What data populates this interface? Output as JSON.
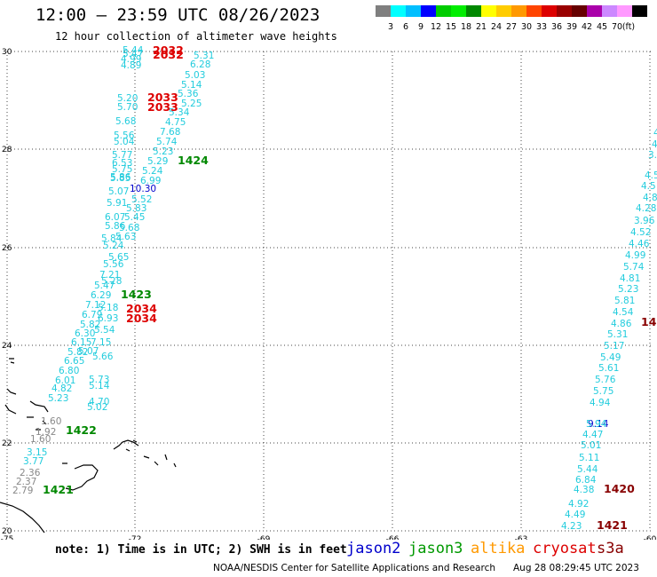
{
  "header": {
    "title": "12:00 — 23:59 UTC 08/26/2023",
    "subtitle": "12 hour collection of altimeter wave heights"
  },
  "legend": {
    "colors": [
      "#7f7f7f",
      "#00ffff",
      "#00bfff",
      "#0000ff",
      "#00cc00",
      "#00ee00",
      "#008800",
      "#ffff00",
      "#ffcc00",
      "#ff9900",
      "#ff4400",
      "#dd0000",
      "#990000",
      "#660000",
      "#aa00aa",
      "#cc88ff",
      "#ff99ff",
      "#000000"
    ],
    "labels": [
      "3",
      "6",
      "9",
      "12",
      "15",
      "18",
      "21",
      "24",
      "27",
      "30",
      "33",
      "36",
      "39",
      "42",
      "45",
      "70",
      "(ft)"
    ]
  },
  "axes": {
    "lat_labels": [
      "30",
      "28",
      "26",
      "24",
      "22",
      "20"
    ],
    "lon_labels": [
      "-75",
      "-72",
      "-69",
      "-66",
      "-63",
      "-60"
    ]
  },
  "points": [
    {
      "t": "5.44",
      "c": "#22ccdd"
    },
    {
      "t": "5.47",
      "c": "#22ccdd"
    },
    {
      "t": "5.31",
      "c": "#22ccdd"
    },
    {
      "t": "4.99",
      "c": "#22ccdd"
    },
    {
      "t": "4.89",
      "c": "#22ccdd"
    },
    {
      "t": "6.28",
      "c": "#22ccdd"
    },
    {
      "t": "5.03",
      "c": "#22ccdd"
    },
    {
      "t": "5.14",
      "c": "#22ccdd"
    },
    {
      "t": "5.36",
      "c": "#22ccdd"
    },
    {
      "t": "5.20",
      "c": "#22ccdd"
    },
    {
      "t": "5.25",
      "c": "#22ccdd"
    },
    {
      "t": "5.70",
      "c": "#22ccdd"
    },
    {
      "t": "5.34",
      "c": "#22ccdd"
    },
    {
      "t": "5.68",
      "c": "#22ccdd"
    },
    {
      "t": "4.75",
      "c": "#22ccdd"
    },
    {
      "t": "5.56",
      "c": "#22ccdd"
    },
    {
      "t": "7.68",
      "c": "#22ccdd"
    },
    {
      "t": "5.04",
      "c": "#22ccdd"
    },
    {
      "t": "5.74",
      "c": "#22ccdd"
    },
    {
      "t": "5.23",
      "c": "#22ccdd"
    },
    {
      "t": "5.77",
      "c": "#22ccdd"
    },
    {
      "t": "5.29",
      "c": "#22ccdd"
    },
    {
      "t": "6.53",
      "c": "#22ccdd"
    },
    {
      "t": "5.75",
      "c": "#22ccdd"
    },
    {
      "t": "5.24",
      "c": "#22ccdd"
    },
    {
      "t": "5.86",
      "c": "#22ccdd"
    },
    {
      "t": "5.85",
      "c": "#22ccdd"
    },
    {
      "t": "6.99",
      "c": "#22ccdd"
    },
    {
      "t": "5.07",
      "c": "#22ccdd"
    },
    {
      "t": "10.30",
      "c": "#0000cc"
    },
    {
      "t": "5.52",
      "c": "#22ccdd"
    },
    {
      "t": "5.91",
      "c": "#22ccdd"
    },
    {
      "t": "5.83",
      "c": "#22ccdd"
    },
    {
      "t": "6.07",
      "c": "#22ccdd"
    },
    {
      "t": "5.45",
      "c": "#22ccdd"
    },
    {
      "t": "5.86",
      "c": "#22ccdd"
    },
    {
      "t": "5.68",
      "c": "#22ccdd"
    },
    {
      "t": "5.84",
      "c": "#22ccdd"
    },
    {
      "t": "5.63",
      "c": "#22ccdd"
    },
    {
      "t": "5.24",
      "c": "#22ccdd"
    },
    {
      "t": "5.65",
      "c": "#22ccdd"
    },
    {
      "t": "5.56",
      "c": "#22ccdd"
    },
    {
      "t": "7.21",
      "c": "#22ccdd"
    },
    {
      "t": "5.28",
      "c": "#22ccdd"
    },
    {
      "t": "5.47",
      "c": "#22ccdd"
    },
    {
      "t": "6.29",
      "c": "#22ccdd"
    },
    {
      "t": "7.12",
      "c": "#22ccdd"
    },
    {
      "t": "5.18",
      "c": "#22ccdd"
    },
    {
      "t": "6.79",
      "c": "#22ccdd"
    },
    {
      "t": "6.93",
      "c": "#22ccdd"
    },
    {
      "t": "5.82",
      "c": "#22ccdd"
    },
    {
      "t": "5.54",
      "c": "#22ccdd"
    },
    {
      "t": "6.30",
      "c": "#22ccdd"
    },
    {
      "t": "6.15",
      "c": "#22ccdd"
    },
    {
      "t": "7.15",
      "c": "#22ccdd"
    },
    {
      "t": "5.82",
      "c": "#22ccdd"
    },
    {
      "t": "5.07",
      "c": "#22ccdd"
    },
    {
      "t": "6.65",
      "c": "#22ccdd"
    },
    {
      "t": "5.66",
      "c": "#22ccdd"
    },
    {
      "t": "6.80",
      "c": "#22ccdd"
    },
    {
      "t": "6.01",
      "c": "#22ccdd"
    },
    {
      "t": "5.73",
      "c": "#22ccdd"
    },
    {
      "t": "4.82",
      "c": "#22ccdd"
    },
    {
      "t": "5.14",
      "c": "#22ccdd"
    },
    {
      "t": "5.23",
      "c": "#22ccdd"
    },
    {
      "t": "4.70",
      "c": "#22ccdd"
    },
    {
      "t": "5.02",
      "c": "#22ccdd"
    },
    {
      "t": "1.60",
      "c": "#888888"
    },
    {
      "t": "1.92",
      "c": "#888888"
    },
    {
      "t": "1.60",
      "c": "#888888"
    },
    {
      "t": "3.15",
      "c": "#22ccdd"
    },
    {
      "t": "3.77",
      "c": "#22ccdd"
    },
    {
      "t": "2.36",
      "c": "#888888"
    },
    {
      "t": "2.37",
      "c": "#888888"
    },
    {
      "t": "2.79",
      "c": "#888888"
    },
    {
      "t": "4.3",
      "c": "#22ccdd"
    },
    {
      "t": "4.5",
      "c": "#22ccdd"
    },
    {
      "t": "3.3",
      "c": "#22ccdd"
    },
    {
      "t": "4.5",
      "c": "#22ccdd"
    },
    {
      "t": "4.80",
      "c": "#22ccdd"
    },
    {
      "t": "4.5",
      "c": "#22ccdd"
    },
    {
      "t": "4.28",
      "c": "#22ccdd"
    },
    {
      "t": "3.96",
      "c": "#22ccdd"
    },
    {
      "t": "4.52",
      "c": "#22ccdd"
    },
    {
      "t": "4.46",
      "c": "#22ccdd"
    },
    {
      "t": "4.99",
      "c": "#22ccdd"
    },
    {
      "t": "5.74",
      "c": "#22ccdd"
    },
    {
      "t": "4.81",
      "c": "#22ccdd"
    },
    {
      "t": "5.23",
      "c": "#22ccdd"
    },
    {
      "t": "5.81",
      "c": "#22ccdd"
    },
    {
      "t": "4.54",
      "c": "#22ccdd"
    },
    {
      "t": "4.86",
      "c": "#22ccdd"
    },
    {
      "t": "5.31",
      "c": "#22ccdd"
    },
    {
      "t": "5.17",
      "c": "#22ccdd"
    },
    {
      "t": "5.49",
      "c": "#22ccdd"
    },
    {
      "t": "5.61",
      "c": "#22ccdd"
    },
    {
      "t": "5.76",
      "c": "#22ccdd"
    },
    {
      "t": "5.75",
      "c": "#22ccdd"
    },
    {
      "t": "4.94",
      "c": "#22ccdd"
    },
    {
      "t": "9.14",
      "c": "#0000cc"
    },
    {
      "t": "5.94",
      "c": "#22ccdd"
    },
    {
      "t": "4.47",
      "c": "#22ccdd"
    },
    {
      "t": "5.01",
      "c": "#22ccdd"
    },
    {
      "t": "5.11",
      "c": "#22ccdd"
    },
    {
      "t": "5.44",
      "c": "#22ccdd"
    },
    {
      "t": "6.84",
      "c": "#22ccdd"
    },
    {
      "t": "4.38",
      "c": "#22ccdd"
    },
    {
      "t": "4.92",
      "c": "#22ccdd"
    },
    {
      "t": "4.49",
      "c": "#22ccdd"
    },
    {
      "t": "4.23",
      "c": "#22ccdd"
    }
  ],
  "times": [
    {
      "t": "2032",
      "c": "#dd0000"
    },
    {
      "t": "2032",
      "c": "#dd0000"
    },
    {
      "t": "2033",
      "c": "#dd0000"
    },
    {
      "t": "2033",
      "c": "#dd0000"
    },
    {
      "t": "1424",
      "c": "#008800"
    },
    {
      "t": "1423",
      "c": "#008800"
    },
    {
      "t": "2034",
      "c": "#dd0000"
    },
    {
      "t": "2034",
      "c": "#dd0000"
    },
    {
      "t": "1422",
      "c": "#008800"
    },
    {
      "t": "1421",
      "c": "#008800"
    },
    {
      "t": "14",
      "c": "#880000"
    },
    {
      "t": "1420",
      "c": "#880000"
    },
    {
      "t": "1421",
      "c": "#880000"
    }
  ],
  "footer": {
    "note": "note: 1) Time is in UTC; 2) SWH is in feet",
    "satellites": [
      {
        "name": "jason2",
        "color": "#0000cc"
      },
      {
        "name": "jason3",
        "color": "#009900"
      },
      {
        "name": "altika",
        "color": "#ff9900"
      },
      {
        "name": "cryosat",
        "color": "#dd0000"
      },
      {
        "name": "s3a",
        "color": "#880000"
      }
    ],
    "credit": "NOAA/NESDIS Center for Satellite Applications and Research",
    "timestamp": "Aug 28 08:29:45 UTC 2023"
  }
}
